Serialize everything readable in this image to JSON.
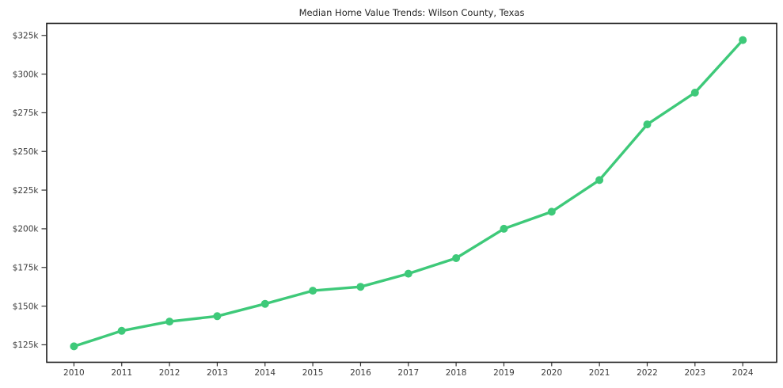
{
  "chart_data": {
    "type": "line",
    "title": "Median Home Value Trends: Wilson County, Texas",
    "x": [
      2010,
      2011,
      2012,
      2013,
      2014,
      2015,
      2016,
      2017,
      2018,
      2019,
      2020,
      2021,
      2022,
      2023,
      2024
    ],
    "x_tick_labels": [
      "2010",
      "2011",
      "2012",
      "2013",
      "2014",
      "2015",
      "2016",
      "2017",
      "2018",
      "2019",
      "2020",
      "2021",
      "2022",
      "2023",
      "2024"
    ],
    "series": [
      {
        "name": "Median Home Value",
        "values": [
          124000,
          134000,
          140000,
          143500,
          151500,
          160000,
          162500,
          171000,
          181000,
          200000,
          211000,
          231500,
          267500,
          288000,
          322000
        ]
      }
    ],
    "y_tick_values": [
      125000,
      150000,
      175000,
      200000,
      225000,
      250000,
      275000,
      300000,
      325000
    ],
    "y_tick_labels": [
      "$125k",
      "$150k",
      "$175k",
      "$200k",
      "$225k",
      "$250k",
      "$275k",
      "$300k",
      "$325k"
    ],
    "xlim": [
      2009.43,
      2024.71
    ],
    "ylim": [
      113700,
      332800
    ],
    "xlabel": "",
    "ylabel": "",
    "grid": false,
    "legend": null,
    "line_color": "#3ec979",
    "marker": "circle",
    "marker_radius": 5,
    "background_color": "#ffffff",
    "spine_color": "#1a1a1a",
    "tick_color": "#333333",
    "text_color": "#3b3b3b"
  }
}
